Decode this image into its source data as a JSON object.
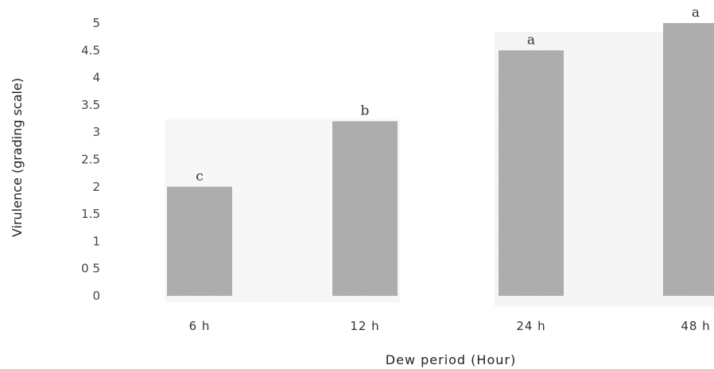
{
  "chart_data": {
    "type": "bar",
    "categories": [
      "6 h",
      "12 h",
      "24 h",
      "48 h"
    ],
    "values": [
      2.0,
      3.2,
      4.5,
      5.0
    ],
    "data_labels": [
      "c",
      "b",
      "a",
      "a"
    ],
    "xlabel": "Dew period (Hour)",
    "ylabel": "Virulence (grading scale)",
    "ylim": [
      0,
      5
    ],
    "yticks": [
      "0",
      "0 5",
      "1",
      "1.5",
      "2",
      "2.5",
      "3",
      "3.5",
      "4",
      "4.5",
      "5"
    ],
    "grid": false,
    "legend": "none",
    "bar_color": "#b4b4b4"
  }
}
